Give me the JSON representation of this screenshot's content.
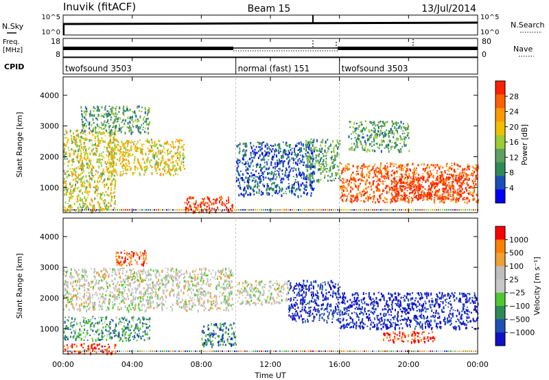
{
  "header": {
    "title_left": "Inuvik (fitACF)",
    "title_center": "Beam 15",
    "title_right": "13/Jul/2014"
  },
  "strips": {
    "nsky": {
      "label": "N.Sky",
      "left_ticks": [
        "10^5",
        "10^0"
      ],
      "right_label": "N.Search",
      "right_ticks": [
        "10^5",
        "10^0"
      ]
    },
    "freq": {
      "label_line1": "Freq.",
      "label_line2": "[MHz]",
      "left_ticks": [
        "18",
        "8"
      ],
      "right_label": "Nave",
      "right_ticks": [
        "80",
        "0"
      ]
    },
    "cpid": {
      "label": "CPID",
      "segments": [
        {
          "label": "twofsound 3503",
          "start_hr": 0,
          "end_hr": 10
        },
        {
          "label": "normal (fast) 151",
          "start_hr": 10,
          "end_hr": 16
        },
        {
          "label": "twofsound 3503",
          "start_hr": 16,
          "end_hr": 24
        }
      ]
    }
  },
  "colors": {
    "power": [
      "#0000ff",
      "#1a4fb8",
      "#2e8b57",
      "#5fa060",
      "#9acd32",
      "#f0c000",
      "#ff9900",
      "#ff6000",
      "#ff2000"
    ],
    "velocity": [
      "#ff0000",
      "#ff7f00",
      "#f0a030",
      "#bebebe",
      "#c8c8c8",
      "#50c830",
      "#2e8b57",
      "#1e50b4",
      "#1010c8"
    ]
  },
  "chart_data": {
    "type": "heatmap",
    "x_axis": {
      "label": "Time UT",
      "range_hr": [
        0,
        24
      ],
      "tick_labels": [
        "00:00",
        "04:00",
        "08:00",
        "12:00",
        "16:00",
        "20:00",
        "00:00"
      ]
    },
    "panels": [
      {
        "name": "power",
        "ylabel": "Slant Range [km]",
        "ylim": [
          180,
          4600
        ],
        "yticks": [
          1000,
          2000,
          3000,
          4000
        ],
        "colorbar": {
          "label": "Power [dB]",
          "ticks": [
            "4",
            "8",
            "12",
            "16",
            "20",
            "24",
            "28"
          ],
          "range": [
            0,
            32
          ]
        },
        "regions": [
          {
            "t0": 0.0,
            "t1": 3.0,
            "r0": 200,
            "r1": 2900,
            "level": 0.55
          },
          {
            "t0": 2.5,
            "t1": 7.0,
            "r0": 1400,
            "r1": 2600,
            "level": 0.6
          },
          {
            "t0": 7.0,
            "t1": 9.8,
            "r0": 180,
            "r1": 700,
            "level": 0.95
          },
          {
            "t0": 1.0,
            "t1": 5.0,
            "r0": 2800,
            "r1": 3700,
            "level": 0.35
          },
          {
            "t0": 10.0,
            "t1": 14.5,
            "r0": 700,
            "r1": 2500,
            "level": 0.2
          },
          {
            "t0": 14.0,
            "t1": 16.0,
            "r0": 1200,
            "r1": 2600,
            "level": 0.35
          },
          {
            "t0": 16.0,
            "t1": 24.0,
            "r0": 500,
            "r1": 1800,
            "level": 0.85
          },
          {
            "t0": 19.0,
            "t1": 23.5,
            "r0": 600,
            "r1": 1400,
            "level": 0.95
          },
          {
            "t0": 16.5,
            "t1": 20.0,
            "r0": 2200,
            "r1": 3200,
            "level": 0.35
          }
        ]
      },
      {
        "name": "velocity",
        "ylabel": "Slant Range [km]",
        "ylim": [
          180,
          4600
        ],
        "yticks": [
          1000,
          2000,
          3000,
          4000
        ],
        "colorbar": {
          "label": "Velocity [m s⁻¹]",
          "ticks": [
            "1000",
            "500",
            "100",
            "25",
            "−25",
            "−100",
            "−500",
            "−1000"
          ]
        },
        "regions": [
          {
            "t0": 0.0,
            "t1": 9.8,
            "r0": 1600,
            "r1": 3000,
            "level": 0.45
          },
          {
            "t0": 0.0,
            "t1": 5.0,
            "r0": 600,
            "r1": 1400,
            "level": 0.68
          },
          {
            "t0": 0.0,
            "t1": 3.0,
            "r0": 180,
            "r1": 500,
            "level": 0.1
          },
          {
            "t0": 3.0,
            "t1": 5.0,
            "r0": 3100,
            "r1": 3600,
            "level": 0.15
          },
          {
            "t0": 10.0,
            "t1": 13.0,
            "r0": 1800,
            "r1": 2600,
            "level": 0.45
          },
          {
            "t0": 13.0,
            "t1": 16.0,
            "r0": 1200,
            "r1": 2600,
            "level": 0.92
          },
          {
            "t0": 16.0,
            "t1": 24.0,
            "r0": 1000,
            "r1": 2200,
            "level": 0.95
          },
          {
            "t0": 18.5,
            "t1": 21.5,
            "r0": 550,
            "r1": 900,
            "level": 0.1
          },
          {
            "t0": 8.0,
            "t1": 10.0,
            "r0": 400,
            "r1": 1200,
            "level": 0.75
          }
        ]
      }
    ]
  }
}
